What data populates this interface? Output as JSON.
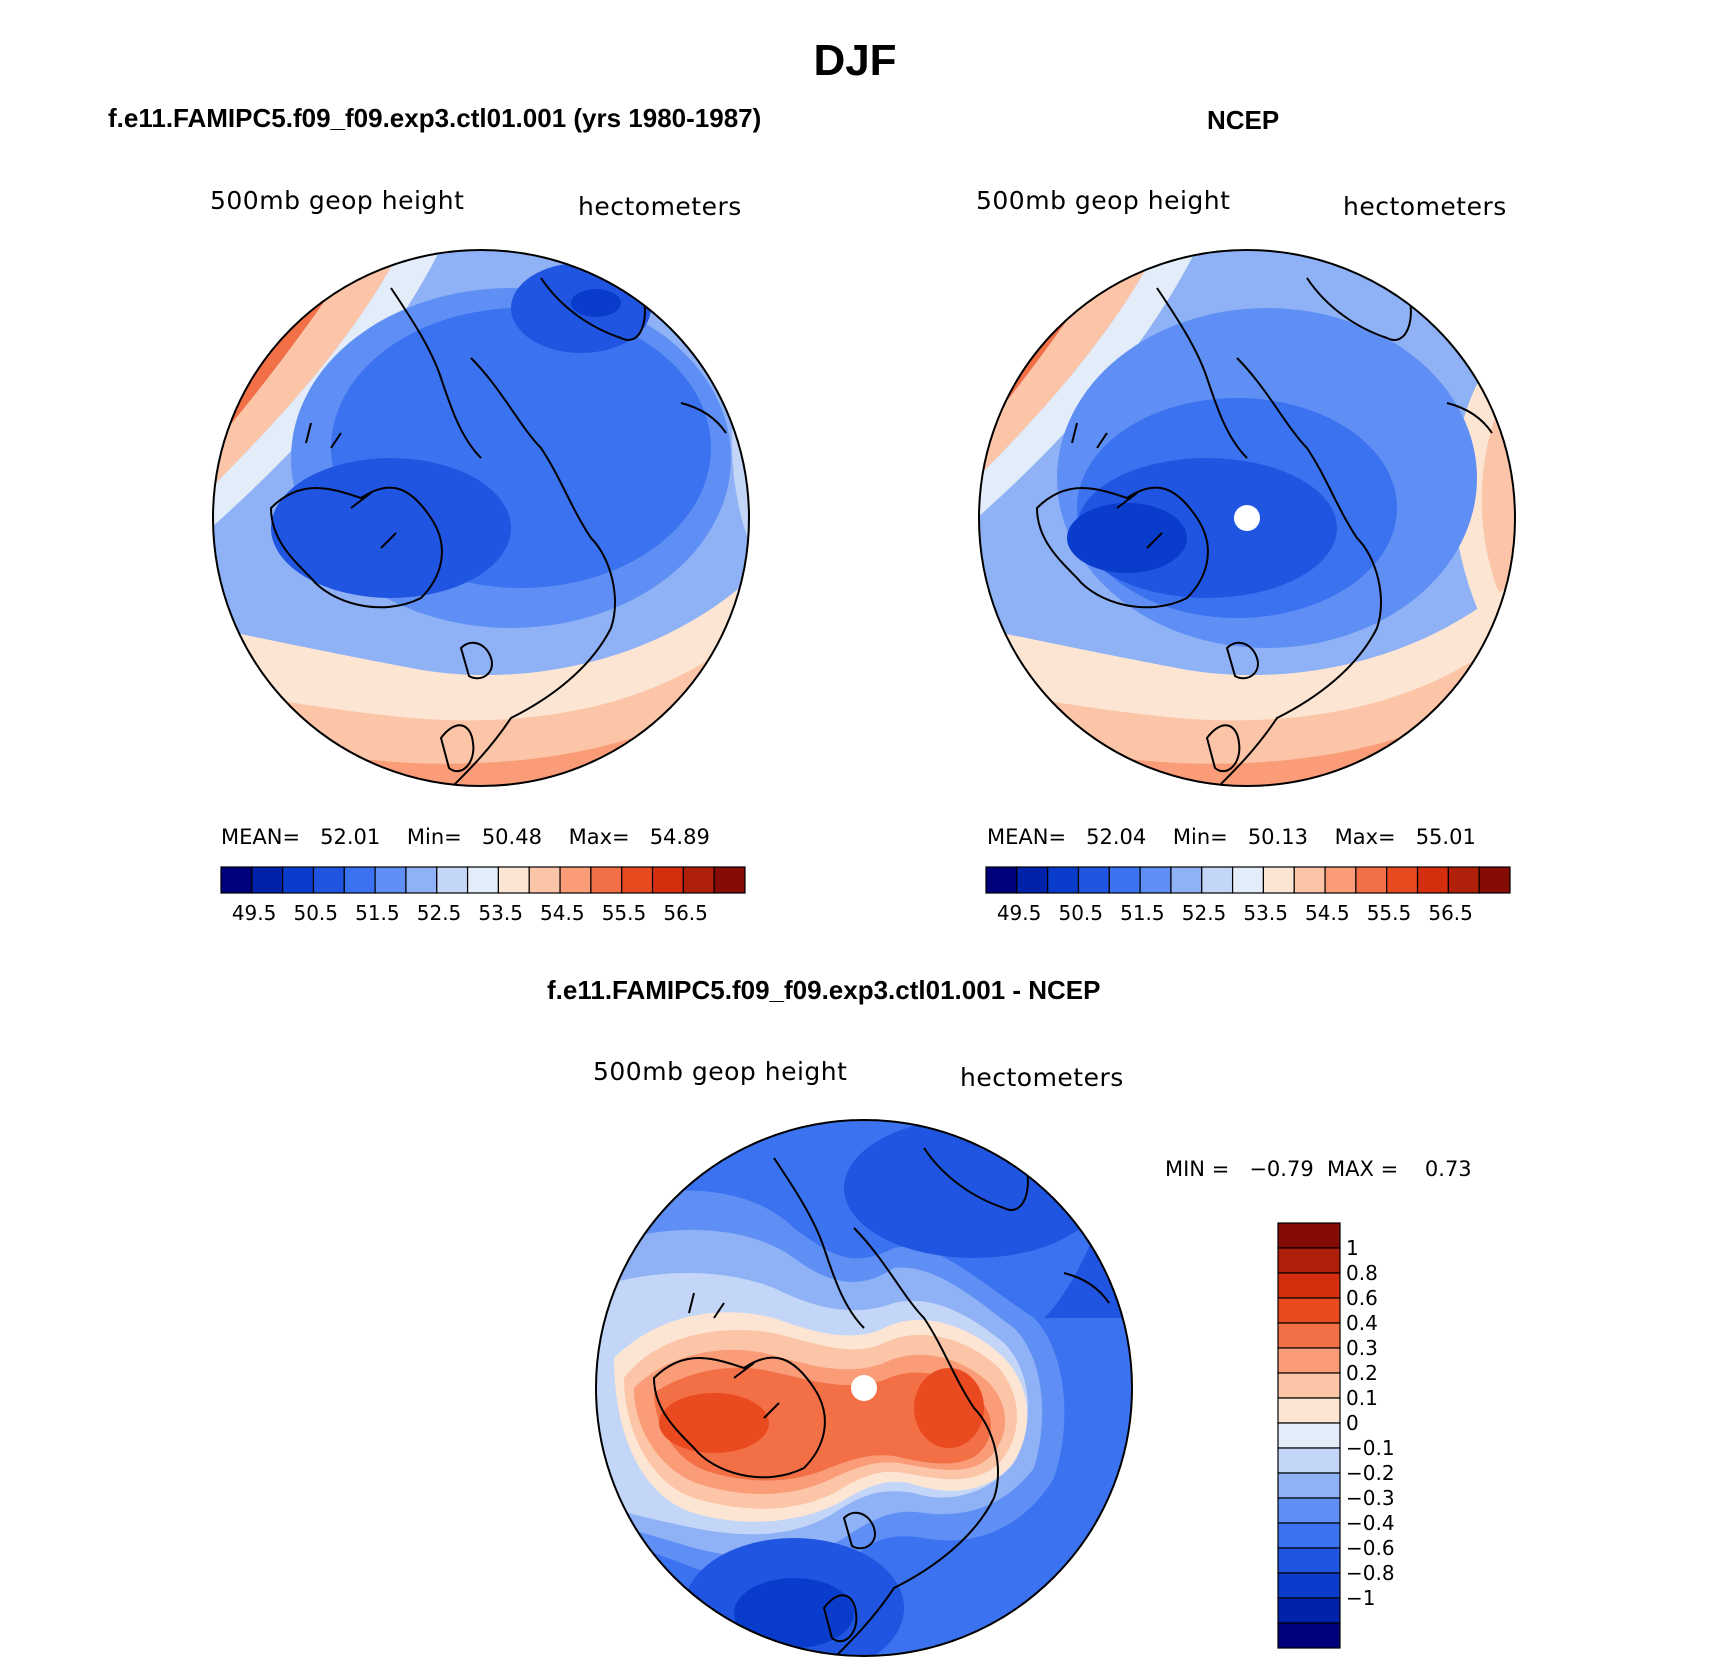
{
  "title": "DJF",
  "panels": [
    {
      "id": "model",
      "title": "f.e11.FAMIPC5.f09_f09.exp3.ctl01.001 (yrs 1980-1987)",
      "field_label": "500mb geop height",
      "units_label": "hectometers",
      "stats": {
        "mean_label": "MEAN=",
        "mean": "52.01",
        "min_label": "Min=",
        "min": "50.48",
        "max_label": "Max=",
        "max": "54.89"
      }
    },
    {
      "id": "ncep",
      "title": "NCEP",
      "field_label": "500mb geop height",
      "units_label": "hectometers",
      "stats": {
        "mean_label": "MEAN=",
        "mean": "52.04",
        "min_label": "Min=",
        "min": "50.13",
        "max_label": "Max=",
        "max": "55.01"
      }
    },
    {
      "id": "diff",
      "title": "f.e11.FAMIPC5.f09_f09.exp3.ctl01.001 - NCEP",
      "field_label": "500mb geop height",
      "units_label": "hectometers",
      "stats": {
        "min_label": "MIN =",
        "min": "−0.79",
        "max_label": "MAX =",
        "max": "0.73"
      }
    }
  ],
  "colorbar_main": {
    "colors": [
      "#00007a",
      "#0022aa",
      "#0a3ccc",
      "#1f55e0",
      "#3a72f0",
      "#5f8ff4",
      "#8fb1f6",
      "#c3d6f8",
      "#e3edf9",
      "#fde5d3",
      "#fcc5a8",
      "#f99c77",
      "#f36f45",
      "#e94a1f",
      "#d42e0f",
      "#b01f0a",
      "#850b05"
    ],
    "tick_labels": [
      "49.5",
      "50.5",
      "51.5",
      "52.5",
      "53.5",
      "54.5",
      "55.5",
      "56.5"
    ]
  },
  "colorbar_diff": {
    "colors": [
      "#850b05",
      "#b01f0a",
      "#d42e0f",
      "#e94a1f",
      "#f36f45",
      "#f99c77",
      "#fcc5a8",
      "#fde5d3",
      "#e3edf9",
      "#c3d6f8",
      "#8fb1f6",
      "#5f8ff4",
      "#3a72f0",
      "#1f55e0",
      "#0a3ccc",
      "#0022aa",
      "#00007a"
    ],
    "tick_labels": [
      "1",
      "0.8",
      "0.6",
      "0.4",
      "0.3",
      "0.2",
      "0.1",
      "0",
      "−0.1",
      "−0.2",
      "−0.3",
      "−0.4",
      "−0.6",
      "−0.8",
      "−1"
    ]
  },
  "chart_data": [
    {
      "type": "heatmap",
      "projection": "north polar stereographic",
      "panel": "model",
      "stats": {
        "mean": 52.01,
        "min": 50.48,
        "max": 54.89
      },
      "contour_levels": [
        49.5,
        50,
        50.5,
        51,
        51.5,
        52,
        52.5,
        53,
        53.5,
        54,
        54.5,
        55,
        55.5,
        56,
        56.5
      ]
    },
    {
      "type": "heatmap",
      "projection": "north polar stereographic",
      "panel": "ncep",
      "stats": {
        "mean": 52.04,
        "min": 50.13,
        "max": 55.01
      },
      "contour_levels": [
        49.5,
        50,
        50.5,
        51,
        51.5,
        52,
        52.5,
        53,
        53.5,
        54,
        54.5,
        55,
        55.5,
        56,
        56.5
      ]
    },
    {
      "type": "heatmap",
      "projection": "north polar stereographic",
      "panel": "diff",
      "stats": {
        "min": -0.79,
        "max": 0.73
      },
      "contour_levels": [
        -1,
        -0.8,
        -0.6,
        -0.4,
        -0.3,
        -0.2,
        -0.1,
        0,
        0.1,
        0.2,
        0.3,
        0.4,
        0.6,
        0.8,
        1
      ]
    }
  ]
}
